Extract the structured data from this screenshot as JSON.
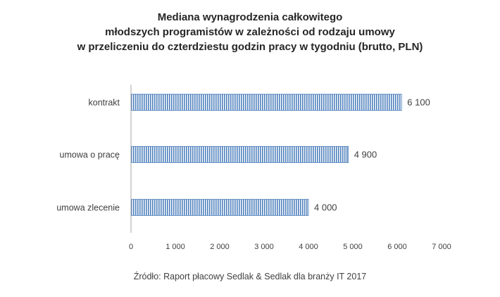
{
  "chart_data": {
    "type": "bar",
    "orientation": "horizontal",
    "title_lines": [
      "Mediana wynagrodzenia całkowitego",
      "młodszych programistów w zależności od rodzaju umowy",
      "w przeliczeniu do czterdziestu godzin pracy w tygodniu (brutto, PLN)"
    ],
    "categories": [
      "kontrakt",
      "umowa o pracę",
      "umowa zlecenie"
    ],
    "values": [
      6100,
      4900,
      4000
    ],
    "value_labels": [
      "6 100",
      "4 900",
      "4 000"
    ],
    "xlim": [
      0,
      7000
    ],
    "x_ticks": [
      0,
      1000,
      2000,
      3000,
      4000,
      5000,
      6000,
      7000
    ],
    "x_tick_labels": [
      "0",
      "1 000",
      "2 000",
      "3 000",
      "4 000",
      "5 000",
      "6 000",
      "7 000"
    ],
    "grid": false,
    "legend": "none",
    "bar_color": "#4f81bd",
    "bar_fill": "vertical-stripes"
  },
  "source": "Źródło: Raport płacowy Sedlak & Sedlak dla branży IT 2017"
}
